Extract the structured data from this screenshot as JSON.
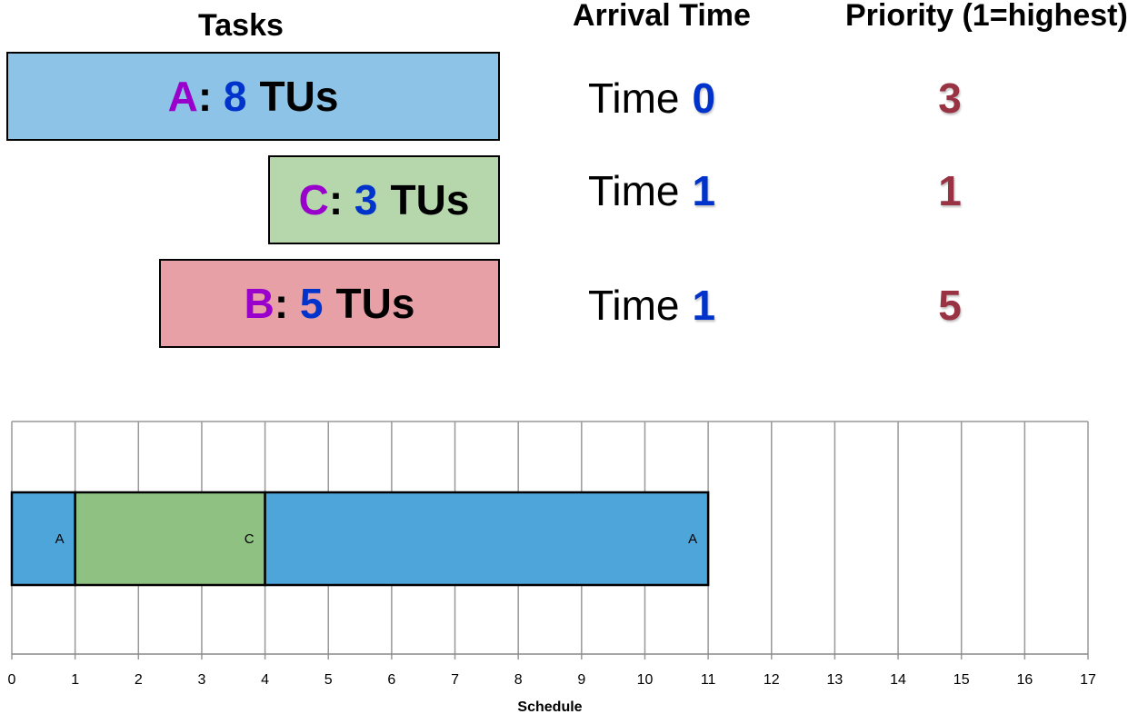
{
  "headers": {
    "tasks": "Tasks",
    "arrival": "Arrival Time",
    "priority": "Priority (1=highest)"
  },
  "tasks": [
    {
      "name": "A",
      "duration": "8",
      "unit": "TUs",
      "arrival_prefix": "Time",
      "arrival": "0",
      "priority": "3",
      "color": "#8dc3e6"
    },
    {
      "name": "C",
      "duration": "3",
      "unit": "TUs",
      "arrival_prefix": "Time",
      "arrival": "1",
      "priority": "1",
      "color": "#b5d7ab"
    },
    {
      "name": "B",
      "duration": "5",
      "unit": "TUs",
      "arrival_prefix": "Time",
      "arrival": "1",
      "priority": "5",
      "color": "#e6a0a6"
    }
  ],
  "chart_data": {
    "type": "bar",
    "orientation": "horizontal-stacked",
    "xlabel": "Schedule",
    "xlim": [
      0,
      17
    ],
    "x_ticks": [
      "0",
      "1",
      "2",
      "3",
      "4",
      "5",
      "6",
      "7",
      "8",
      "9",
      "10",
      "11",
      "12",
      "13",
      "14",
      "15",
      "16",
      "17"
    ],
    "grid": true,
    "segments": [
      {
        "label": "A",
        "start": 0,
        "end": 1,
        "color": "#4ea5d9"
      },
      {
        "label": "C",
        "start": 1,
        "end": 4,
        "color": "#8fc282"
      },
      {
        "label": "A",
        "start": 4,
        "end": 11,
        "color": "#4ea5d9"
      }
    ]
  }
}
